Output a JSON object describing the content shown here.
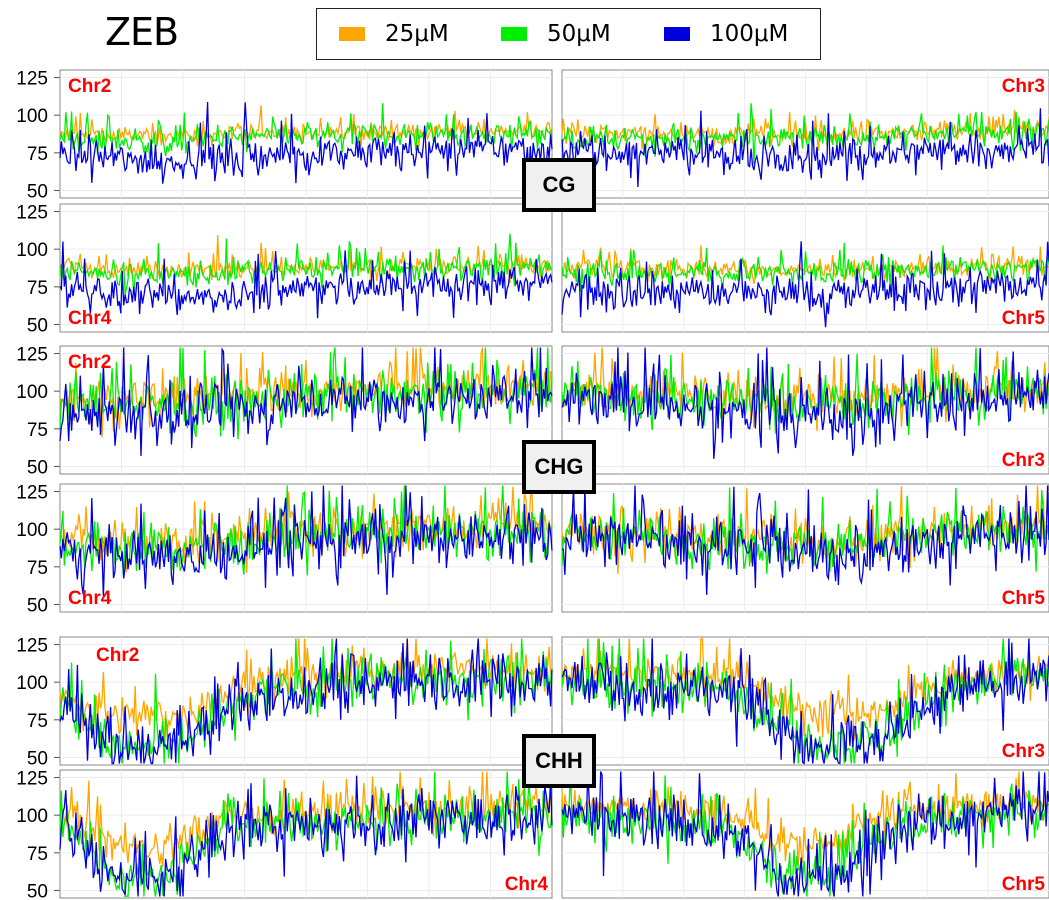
{
  "figure_title": "ZEB",
  "legend": [
    {
      "label": "25μM",
      "color": "#ffa500"
    },
    {
      "label": "50μM",
      "color": "#00ee00"
    },
    {
      "label": "100μM",
      "color": "#0000dd"
    }
  ],
  "context_labels": [
    "CG",
    "CHG",
    "CHH"
  ],
  "y_tick_labels": [
    "50",
    "75",
    "100",
    "125"
  ],
  "chart_data": [
    {
      "type": "line",
      "context": "CG",
      "chromosome": "Chr2",
      "ylim": [
        45,
        130
      ],
      "series": [
        {
          "name": "25μM",
          "baseline": [
            [
              0,
              87
            ],
            [
              0.2,
              86
            ],
            [
              0.4,
              88
            ],
            [
              0.7,
              89
            ],
            [
              1,
              90
            ]
          ],
          "noise": 6
        },
        {
          "name": "50μM",
          "baseline": [
            [
              0,
              84
            ],
            [
              0.2,
              82
            ],
            [
              0.4,
              86
            ],
            [
              0.7,
              87
            ],
            [
              1,
              88
            ]
          ],
          "noise": 8
        },
        {
          "name": "100μM",
          "baseline": [
            [
              0,
              74
            ],
            [
              0.2,
              69
            ],
            [
              0.4,
              73
            ],
            [
              0.7,
              76
            ],
            [
              1,
              78
            ]
          ],
          "noise": 12
        }
      ]
    },
    {
      "type": "line",
      "context": "CG",
      "chromosome": "Chr3",
      "ylim": [
        45,
        130
      ],
      "series": [
        {
          "name": "25μM",
          "baseline": [
            [
              0,
              88
            ],
            [
              0.5,
              87
            ],
            [
              0.8,
              90
            ],
            [
              1,
              92
            ]
          ],
          "noise": 6
        },
        {
          "name": "50μM",
          "baseline": [
            [
              0,
              85
            ],
            [
              0.5,
              84
            ],
            [
              0.8,
              88
            ],
            [
              1,
              90
            ]
          ],
          "noise": 8
        },
        {
          "name": "100μM",
          "baseline": [
            [
              0,
              77
            ],
            [
              0.5,
              70
            ],
            [
              0.8,
              78
            ],
            [
              1,
              80
            ]
          ],
          "noise": 12
        }
      ]
    },
    {
      "type": "line",
      "context": "CG",
      "chromosome": "Chr4",
      "ylim": [
        45,
        130
      ],
      "series": [
        {
          "name": "25μM",
          "baseline": [
            [
              0,
              88
            ],
            [
              0.2,
              86
            ],
            [
              0.5,
              88
            ],
            [
              1,
              90
            ]
          ],
          "noise": 6
        },
        {
          "name": "50μM",
          "baseline": [
            [
              0,
              85
            ],
            [
              0.2,
              83
            ],
            [
              0.5,
              86
            ],
            [
              1,
              88
            ]
          ],
          "noise": 8
        },
        {
          "name": "100μM",
          "baseline": [
            [
              0,
              74
            ],
            [
              0.2,
              67
            ],
            [
              0.5,
              74
            ],
            [
              1,
              78
            ]
          ],
          "noise": 12
        }
      ]
    },
    {
      "type": "line",
      "context": "CG",
      "chromosome": "Chr5",
      "ylim": [
        45,
        130
      ],
      "series": [
        {
          "name": "25μM",
          "baseline": [
            [
              0,
              88
            ],
            [
              0.5,
              86
            ],
            [
              1,
              90
            ]
          ],
          "noise": 6
        },
        {
          "name": "50μM",
          "baseline": [
            [
              0,
              85
            ],
            [
              0.5,
              84
            ],
            [
              1,
              88
            ]
          ],
          "noise": 8
        },
        {
          "name": "100μM",
          "baseline": [
            [
              0,
              76
            ],
            [
              0.5,
              69
            ],
            [
              1,
              78
            ]
          ],
          "noise": 12
        }
      ]
    },
    {
      "type": "line",
      "context": "CHG",
      "chromosome": "Chr2",
      "ylim": [
        45,
        130
      ],
      "series": [
        {
          "name": "25μM",
          "baseline": [
            [
              0,
              96
            ],
            [
              0.25,
              94
            ],
            [
              0.45,
              100
            ],
            [
              1,
              104
            ]
          ],
          "noise": 14
        },
        {
          "name": "50μM",
          "baseline": [
            [
              0,
              92
            ],
            [
              0.25,
              90
            ],
            [
              0.45,
              96
            ],
            [
              1,
              100
            ]
          ],
          "noise": 15
        },
        {
          "name": "100μM",
          "baseline": [
            [
              0,
              86
            ],
            [
              0.25,
              82
            ],
            [
              0.45,
              92
            ],
            [
              1,
              98
            ]
          ],
          "noise": 18
        }
      ]
    },
    {
      "type": "line",
      "context": "CHG",
      "chromosome": "Chr3",
      "ylim": [
        45,
        130
      ],
      "series": [
        {
          "name": "25μM",
          "baseline": [
            [
              0,
              104
            ],
            [
              0.3,
              98
            ],
            [
              0.6,
              96
            ],
            [
              0.8,
              100
            ],
            [
              1,
              104
            ]
          ],
          "noise": 14
        },
        {
          "name": "50μM",
          "baseline": [
            [
              0,
              100
            ],
            [
              0.3,
              94
            ],
            [
              0.6,
              92
            ],
            [
              0.8,
              96
            ],
            [
              1,
              100
            ]
          ],
          "noise": 15
        },
        {
          "name": "100μM",
          "baseline": [
            [
              0,
              98
            ],
            [
              0.3,
              88
            ],
            [
              0.6,
              82
            ],
            [
              0.8,
              94
            ],
            [
              1,
              98
            ]
          ],
          "noise": 18
        }
      ]
    },
    {
      "type": "line",
      "context": "CHG",
      "chromosome": "Chr4",
      "ylim": [
        45,
        130
      ],
      "series": [
        {
          "name": "25μM",
          "baseline": [
            [
              0,
              94
            ],
            [
              0.25,
              90
            ],
            [
              0.5,
              100
            ],
            [
              1,
              104
            ]
          ],
          "noise": 14
        },
        {
          "name": "50μM",
          "baseline": [
            [
              0,
              90
            ],
            [
              0.25,
              87
            ],
            [
              0.5,
              96
            ],
            [
              1,
              100
            ]
          ],
          "noise": 15
        },
        {
          "name": "100μM",
          "baseline": [
            [
              0,
              84
            ],
            [
              0.25,
              80
            ],
            [
              0.5,
              92
            ],
            [
              1,
              98
            ]
          ],
          "noise": 18
        }
      ]
    },
    {
      "type": "line",
      "context": "CHG",
      "chromosome": "Chr5",
      "ylim": [
        45,
        130
      ],
      "series": [
        {
          "name": "25μM",
          "baseline": [
            [
              0,
              100
            ],
            [
              0.35,
              96
            ],
            [
              0.55,
              92
            ],
            [
              0.75,
              100
            ],
            [
              1,
              104
            ]
          ],
          "noise": 14
        },
        {
          "name": "50μM",
          "baseline": [
            [
              0,
              96
            ],
            [
              0.35,
              92
            ],
            [
              0.55,
              88
            ],
            [
              0.75,
              96
            ],
            [
              1,
              100
            ]
          ],
          "noise": 15
        },
        {
          "name": "100μM",
          "baseline": [
            [
              0,
              96
            ],
            [
              0.35,
              88
            ],
            [
              0.55,
              80
            ],
            [
              0.75,
              92
            ],
            [
              1,
              98
            ]
          ],
          "noise": 18
        }
      ]
    },
    {
      "type": "line",
      "context": "CHH",
      "chromosome": "Chr2",
      "ylim": [
        45,
        130
      ],
      "series": [
        {
          "name": "25μM",
          "baseline": [
            [
              0,
              92
            ],
            [
              0.12,
              76
            ],
            [
              0.25,
              78
            ],
            [
              0.4,
              100
            ],
            [
              0.6,
              108
            ],
            [
              1,
              110
            ]
          ],
          "noise": 12
        },
        {
          "name": "50μM",
          "baseline": [
            [
              0,
              88
            ],
            [
              0.12,
              56
            ],
            [
              0.25,
              62
            ],
            [
              0.4,
              94
            ],
            [
              0.6,
              100
            ],
            [
              1,
              102
            ]
          ],
          "noise": 15
        },
        {
          "name": "100μM",
          "baseline": [
            [
              0,
              86
            ],
            [
              0.12,
              52
            ],
            [
              0.25,
              60
            ],
            [
              0.4,
              92
            ],
            [
              0.6,
              100
            ],
            [
              1,
              102
            ]
          ],
          "noise": 18
        }
      ]
    },
    {
      "type": "line",
      "context": "CHH",
      "chromosome": "Chr3",
      "ylim": [
        45,
        130
      ],
      "series": [
        {
          "name": "25μM",
          "baseline": [
            [
              0,
              108
            ],
            [
              0.35,
              104
            ],
            [
              0.5,
              80
            ],
            [
              0.65,
              80
            ],
            [
              0.8,
              104
            ],
            [
              1,
              110
            ]
          ],
          "noise": 12
        },
        {
          "name": "50μM",
          "baseline": [
            [
              0,
              100
            ],
            [
              0.35,
              94
            ],
            [
              0.5,
              60
            ],
            [
              0.65,
              62
            ],
            [
              0.8,
              96
            ],
            [
              1,
              104
            ]
          ],
          "noise": 15
        },
        {
          "name": "100μM",
          "baseline": [
            [
              0,
              100
            ],
            [
              0.35,
              92
            ],
            [
              0.5,
              56
            ],
            [
              0.65,
              58
            ],
            [
              0.8,
              94
            ],
            [
              1,
              104
            ]
          ],
          "noise": 18
        }
      ]
    },
    {
      "type": "line",
      "context": "CHH",
      "chromosome": "Chr4",
      "ylim": [
        45,
        130
      ],
      "series": [
        {
          "name": "25μM",
          "baseline": [
            [
              0,
              104
            ],
            [
              0.12,
              78
            ],
            [
              0.22,
              80
            ],
            [
              0.35,
              100
            ],
            [
              1,
              108
            ]
          ],
          "noise": 12
        },
        {
          "name": "50μM",
          "baseline": [
            [
              0,
              98
            ],
            [
              0.12,
              58
            ],
            [
              0.22,
              62
            ],
            [
              0.35,
              94
            ],
            [
              1,
              100
            ]
          ],
          "noise": 15
        },
        {
          "name": "100μM",
          "baseline": [
            [
              0,
              96
            ],
            [
              0.12,
              55
            ],
            [
              0.22,
              58
            ],
            [
              0.35,
              92
            ],
            [
              1,
              100
            ]
          ],
          "noise": 18
        }
      ]
    },
    {
      "type": "line",
      "context": "CHH",
      "chromosome": "Chr5",
      "ylim": [
        45,
        130
      ],
      "series": [
        {
          "name": "25μM",
          "baseline": [
            [
              0,
              108
            ],
            [
              0.35,
              100
            ],
            [
              0.45,
              80
            ],
            [
              0.55,
              82
            ],
            [
              0.7,
              104
            ],
            [
              1,
              110
            ]
          ],
          "noise": 12
        },
        {
          "name": "50μM",
          "baseline": [
            [
              0,
              100
            ],
            [
              0.35,
              92
            ],
            [
              0.45,
              60
            ],
            [
              0.55,
              62
            ],
            [
              0.7,
              96
            ],
            [
              1,
              104
            ]
          ],
          "noise": 15
        },
        {
          "name": "100μM",
          "baseline": [
            [
              0,
              100
            ],
            [
              0.35,
              90
            ],
            [
              0.45,
              55
            ],
            [
              0.55,
              56
            ],
            [
              0.7,
              94
            ],
            [
              1,
              104
            ]
          ],
          "noise": 18
        }
      ]
    }
  ]
}
